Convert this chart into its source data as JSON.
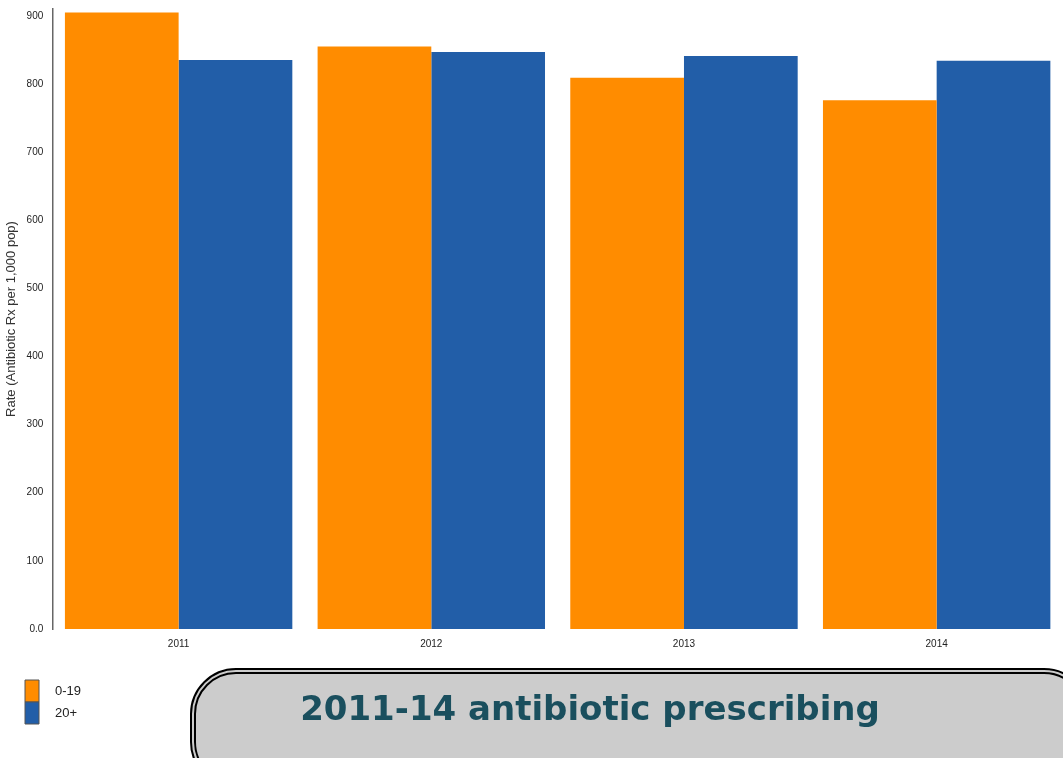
{
  "chart_data": {
    "type": "bar",
    "title": "2011-14 antibiotic prescribing",
    "ylabel": "Rate (Antibiotic Rx per 1,000 pop)",
    "categories": [
      "2011",
      "2012",
      "2013",
      "2014"
    ],
    "series": [
      {
        "name": "0-19",
        "color": "#ff8c00",
        "values": [
          905,
          855,
          809,
          776
        ]
      },
      {
        "name": "20+",
        "color": "#225ea8",
        "values": [
          835,
          847,
          841,
          834
        ]
      }
    ],
    "ylim": [
      0,
      910
    ],
    "yticks": [
      {
        "value": 0,
        "label": "0.0"
      },
      100,
      200,
      300,
      400,
      500,
      600,
      700,
      800,
      900
    ],
    "grid": false,
    "legend": "bottom left"
  }
}
